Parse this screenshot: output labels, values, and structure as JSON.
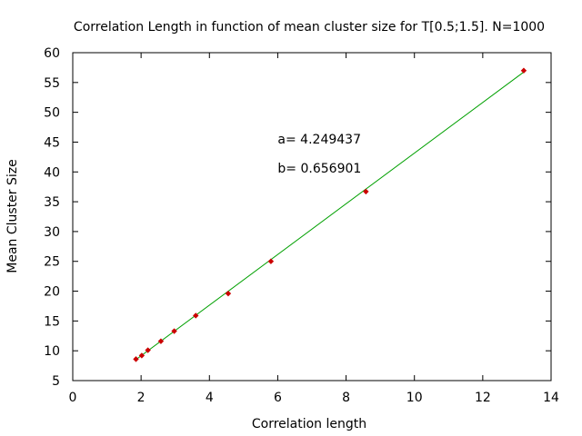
{
  "chart_data": {
    "type": "scatter",
    "title": "Correlation Length in function of mean cluster size for T[0.5;1.5]. N=1000",
    "xlabel": "Correlation length",
    "ylabel": "Mean Cluster Size",
    "xlim": [
      0,
      14
    ],
    "ylim": [
      5,
      60
    ],
    "xticks": [
      0,
      2,
      4,
      6,
      8,
      10,
      12,
      14
    ],
    "yticks": [
      5,
      10,
      15,
      20,
      25,
      30,
      35,
      40,
      45,
      50,
      55,
      60
    ],
    "grid": false,
    "series": [
      {
        "name": "",
        "type": "scatter",
        "color": "#cc0000",
        "points": [
          {
            "x": 1.85,
            "y": 8.6
          },
          {
            "x": 2.02,
            "y": 9.2
          },
          {
            "x": 2.2,
            "y": 10.1
          },
          {
            "x": 2.58,
            "y": 11.6
          },
          {
            "x": 2.97,
            "y": 13.3
          },
          {
            "x": 3.6,
            "y": 15.9
          },
          {
            "x": 4.55,
            "y": 19.6
          },
          {
            "x": 5.8,
            "y": 25.0
          },
          {
            "x": 8.58,
            "y": 36.7
          },
          {
            "x": 13.2,
            "y": 57.0
          }
        ]
      },
      {
        "name": "",
        "type": "line",
        "color": "#00a000",
        "x": [
          1.85,
          13.2
        ],
        "y": [
          8.52,
          56.75
        ]
      }
    ],
    "annotations": [
      {
        "text": "a= 4.249437",
        "x": 6.0,
        "y": 44.8
      },
      {
        "text": "b= 0.656901",
        "x": 6.0,
        "y": 39.9
      }
    ]
  }
}
